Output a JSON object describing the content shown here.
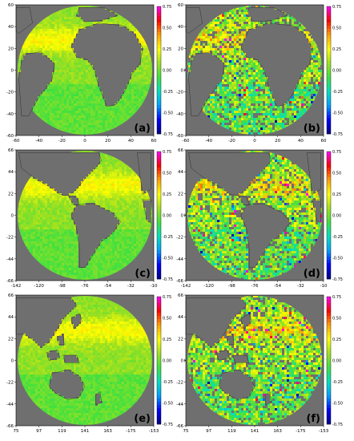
{
  "chart_data": [
    {
      "type": "heatmap",
      "panel": "(a)",
      "region": "atlantic",
      "xticks": [
        "-60",
        "-40",
        "-20",
        "0",
        "20",
        "40",
        "60"
      ],
      "yticks": [
        "60",
        "40",
        "20",
        "0",
        "-20",
        "-40",
        "-60"
      ],
      "colorbar_ticks": [
        "0.75",
        "0.50",
        "0.25",
        "0.00",
        "-0.25",
        "-0.50",
        "-0.75"
      ],
      "colorbar_label": "K",
      "vmin": -0.75,
      "vmax": 0.75,
      "pattern": "smooth"
    },
    {
      "type": "heatmap",
      "panel": "(b)",
      "region": "atlantic",
      "xticks": [
        "-60",
        "-40",
        "-20",
        "0",
        "20",
        "40",
        "60"
      ],
      "yticks": [
        "60",
        "40",
        "20",
        "0",
        "-20",
        "-40",
        "-60"
      ],
      "colorbar_ticks": [
        "0.75",
        "0.50",
        "0.25",
        "0.00",
        "-0.25",
        "-0.50",
        "-0.75"
      ],
      "colorbar_label": "K",
      "vmin": -0.75,
      "vmax": 0.75,
      "pattern": "noisy"
    },
    {
      "type": "heatmap",
      "panel": "(c)",
      "region": "americas",
      "xticks": [
        "-142",
        "-120",
        "-98",
        "-76",
        "-54",
        "-32",
        "-10"
      ],
      "yticks": [
        "66",
        "44",
        "22",
        "0",
        "-22",
        "-44",
        "-66"
      ],
      "colorbar_ticks": [
        "0.75",
        "0.50",
        "0.25",
        "0.00",
        "-0.25",
        "-0.50",
        "-0.75"
      ],
      "colorbar_label": "K",
      "vmin": -0.75,
      "vmax": 0.75,
      "pattern": "smooth"
    },
    {
      "type": "heatmap",
      "panel": "(d)",
      "region": "americas",
      "xticks": [
        "-142",
        "-120",
        "-98",
        "-76",
        "-54",
        "-32",
        "-10"
      ],
      "yticks": [
        "66",
        "44",
        "22",
        "0",
        "-22",
        "-44",
        "-66"
      ],
      "colorbar_ticks": [
        "0.75",
        "0.50",
        "0.25",
        "0.00",
        "-0.25",
        "-0.50",
        "-0.75"
      ],
      "colorbar_label": "K",
      "vmin": -0.75,
      "vmax": 0.75,
      "pattern": "noisy"
    },
    {
      "type": "heatmap",
      "panel": "(e)",
      "region": "pacific",
      "xticks": [
        "75",
        "97",
        "119",
        "141",
        "163",
        "-175",
        "-153"
      ],
      "yticks": [
        "66",
        "44",
        "22",
        "0",
        "-22",
        "-44",
        "-66"
      ],
      "colorbar_ticks": [
        "0.75",
        "0.50",
        "0.25",
        "0.00",
        "-0.25",
        "-0.50",
        "-0.75"
      ],
      "colorbar_label": "K",
      "vmin": -0.75,
      "vmax": 0.75,
      "pattern": "smooth"
    },
    {
      "type": "heatmap",
      "panel": "(f)",
      "region": "pacific",
      "xticks": [
        "75",
        "97",
        "119",
        "141",
        "163",
        "-175",
        "-153"
      ],
      "yticks": [
        "66",
        "44",
        "22",
        "0",
        "-22",
        "-44",
        "-66"
      ],
      "colorbar_ticks": [
        "0.75",
        "0.50",
        "0.25",
        "0.00",
        "-0.25",
        "-0.50",
        "-0.75"
      ],
      "colorbar_label": "K",
      "vmin": -0.75,
      "vmax": 0.75,
      "pattern": "noisy"
    }
  ],
  "colors": {
    "land": "#6f6f6f",
    "background": "#ffffff",
    "colormap": [
      "#000080",
      "#0000ff",
      "#00a0ff",
      "#00e0c0",
      "#40e040",
      "#a0e020",
      "#ffff00",
      "#ffa000",
      "#ff0000",
      "#ff00ff"
    ]
  }
}
